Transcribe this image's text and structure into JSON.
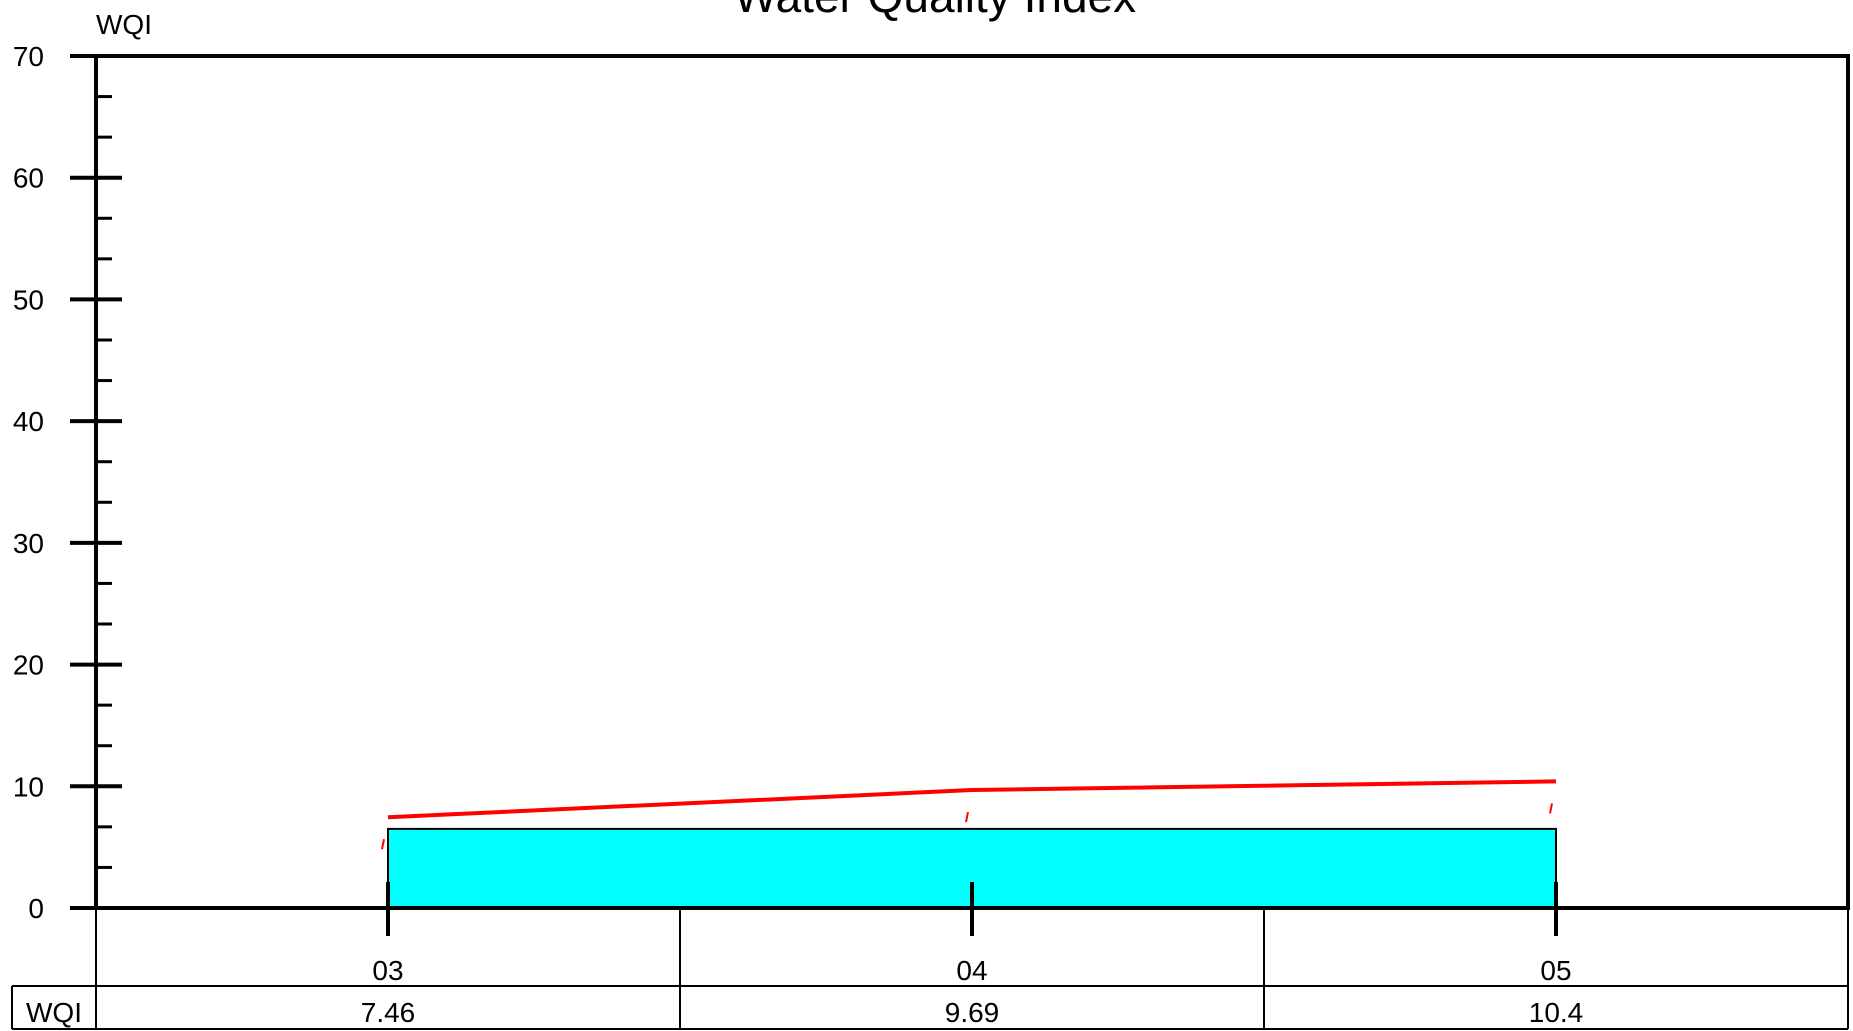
{
  "chart_data": {
    "type": "line",
    "title": "Water Quality Index",
    "ylabel": "WQI",
    "xlabel": "",
    "ylim": [
      0,
      70
    ],
    "yticks": [
      0,
      10,
      20,
      30,
      40,
      50,
      60,
      70
    ],
    "categories": [
      "03",
      "04",
      "05"
    ],
    "series": [
      {
        "name": "WQI",
        "values": [
          7.46,
          9.69,
          10.4
        ]
      }
    ],
    "band": {
      "from_category": "03",
      "to_category": "05",
      "y_low": 0,
      "y_high": 6.5
    },
    "table": {
      "row_label": "WQI",
      "values": [
        "7.46",
        "9.69",
        "10.4"
      ]
    },
    "grid": false,
    "legend": "none",
    "colors": {
      "line": "#ff0000",
      "band": "#00ffff",
      "axis": "#000000"
    }
  }
}
